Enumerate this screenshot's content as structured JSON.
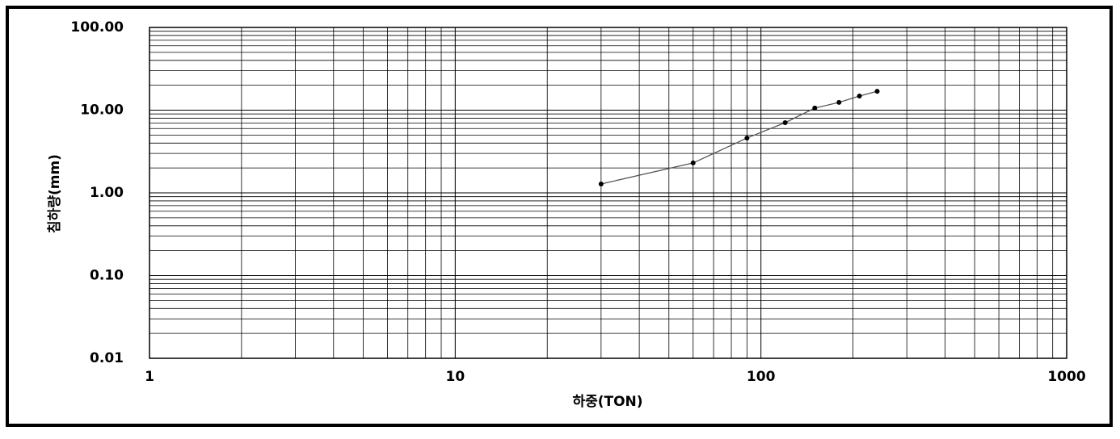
{
  "chart_data": {
    "type": "line",
    "x_label": "하중(TON)",
    "y_label": "침하량(mm)",
    "x": [
      30,
      60,
      90,
      120,
      150,
      180,
      210,
      240
    ],
    "values": [
      1.28,
      2.3,
      4.6,
      7.06,
      10.6,
      12.4,
      14.8,
      16.9
    ],
    "color": "#000000",
    "line_color": "#555555",
    "xscale": "log",
    "yscale": "log",
    "grid": true,
    "xlim": [
      1,
      1000
    ],
    "ylim": [
      0.01,
      100
    ],
    "xticks": [
      1,
      10,
      100,
      1000
    ],
    "yticks": [
      {
        "value": 100,
        "label": "100.00"
      },
      {
        "value": 10,
        "label": "10.00"
      },
      {
        "value": 1,
        "label": "1.00"
      },
      {
        "value": 0.1,
        "label": "0.10"
      },
      0.01
    ],
    "xminorticks": [
      2,
      3,
      4,
      5,
      6,
      7,
      8,
      9,
      20,
      30,
      40,
      50,
      60,
      70,
      80,
      90,
      200,
      300,
      400,
      500,
      600,
      700,
      800,
      900
    ],
    "yminorticks": [
      0.02,
      0.03,
      0.04,
      0.05,
      0.06,
      0.07,
      0.08,
      0.09,
      0.2,
      0.3,
      0.4,
      0.5,
      0.6,
      0.7,
      0.8,
      0.9,
      2,
      3,
      4,
      5,
      6,
      7,
      8,
      9,
      20,
      30,
      40,
      50,
      60,
      70,
      80,
      90
    ]
  }
}
